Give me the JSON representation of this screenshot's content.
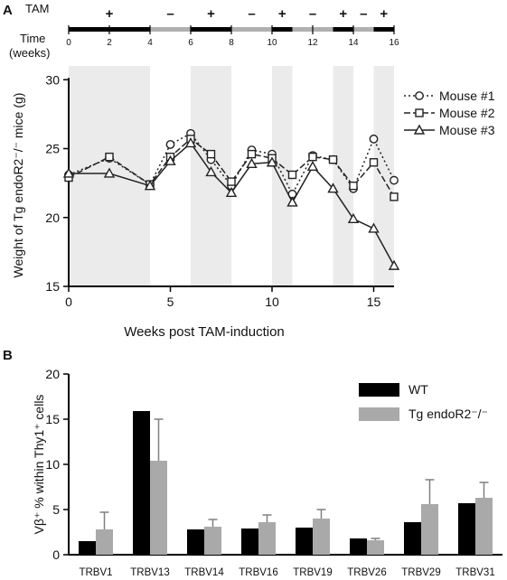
{
  "panel_a": {
    "letter": "A",
    "tam_label": "TAM",
    "time_label": [
      "Time",
      "(weeks)"
    ],
    "timeline_ticks": [
      0,
      2,
      4,
      6,
      8,
      10,
      12,
      14,
      16
    ],
    "tam_segments": [
      {
        "start": 0,
        "end": 4,
        "on": true
      },
      {
        "start": 4,
        "end": 6,
        "on": false
      },
      {
        "start": 6,
        "end": 8,
        "on": true
      },
      {
        "start": 8,
        "end": 10,
        "on": false
      },
      {
        "start": 10,
        "end": 11,
        "on": true
      },
      {
        "start": 11,
        "end": 13,
        "on": false
      },
      {
        "start": 13,
        "end": 14,
        "on": true
      },
      {
        "start": 14,
        "end": 15,
        "on": false
      },
      {
        "start": 15,
        "end": 16,
        "on": true
      }
    ],
    "tam_marks": [
      {
        "week": 2,
        "sign": "+"
      },
      {
        "week": 5,
        "sign": "–"
      },
      {
        "week": 7,
        "sign": "+"
      },
      {
        "week": 9,
        "sign": "–"
      },
      {
        "week": 10.5,
        "sign": "+"
      },
      {
        "week": 12,
        "sign": "–"
      },
      {
        "week": 13.5,
        "sign": "+"
      },
      {
        "week": 14.5,
        "sign": "–"
      },
      {
        "week": 15.5,
        "sign": "+"
      }
    ]
  },
  "panel_b": {
    "letter": "B"
  },
  "chart_data": [
    {
      "type": "line",
      "xlabel": "Weeks post TAM-induction",
      "ylabel": "Weight of Tg endoR2⁻/⁻ mice (g)",
      "xlim": [
        0,
        16
      ],
      "ylim": [
        15,
        31
      ],
      "xticks": [
        0,
        5,
        10,
        15
      ],
      "yticks": [
        15,
        20,
        25,
        30
      ],
      "legend_position": "top-right",
      "shaded_weeks": [
        [
          0,
          4
        ],
        [
          6,
          8
        ],
        [
          10,
          11
        ],
        [
          13,
          14
        ],
        [
          15,
          16
        ]
      ],
      "x": [
        0,
        2,
        4,
        5,
        6,
        7,
        8,
        9,
        10,
        11,
        12,
        13,
        14,
        15,
        16
      ],
      "series": [
        {
          "name": "Mouse #1",
          "marker": "circle",
          "dash": "2,3",
          "values": [
            23.1,
            24.3,
            22.4,
            25.3,
            26.1,
            24.2,
            22.3,
            24.9,
            24.6,
            21.7,
            24.5,
            24.2,
            22.1,
            25.7,
            22.7
          ]
        },
        {
          "name": "Mouse #2",
          "marker": "square",
          "dash": "7,3",
          "values": [
            22.9,
            24.4,
            22.4,
            24.4,
            25.7,
            24.6,
            22.6,
            24.6,
            24.3,
            23.1,
            24.4,
            24.2,
            22.3,
            24.0,
            21.5
          ]
        },
        {
          "name": "Mouse #3",
          "marker": "triangle",
          "dash": "",
          "values": [
            23.2,
            23.2,
            22.3,
            24.1,
            25.4,
            23.3,
            21.8,
            23.9,
            24.0,
            21.1,
            23.7,
            22.1,
            19.9,
            19.2,
            16.5
          ]
        }
      ]
    },
    {
      "type": "bar",
      "ylabel": "Vβ⁺ % within Thy1⁺ cells",
      "ylim": [
        0,
        20
      ],
      "yticks": [
        0,
        5,
        10,
        15,
        20
      ],
      "legend_position": "top-right",
      "categories": [
        "TRBV1",
        "TRBV13",
        "TRBV14",
        "TRBV16",
        "TRBV19",
        "TRBV26",
        "TRBV29",
        "TRBV31"
      ],
      "series": [
        {
          "name": "WT",
          "color": "#000000",
          "values": [
            1.5,
            15.9,
            2.8,
            2.9,
            3.0,
            1.8,
            3.6,
            5.7
          ],
          "errors": [
            0,
            0,
            0,
            0,
            0,
            0,
            0,
            0
          ]
        },
        {
          "name": "Tg endoR2⁻/⁻",
          "color": "#a9a9a9",
          "values": [
            2.8,
            10.4,
            3.1,
            3.6,
            4.0,
            1.6,
            5.6,
            6.3
          ],
          "errors": [
            1.9,
            4.6,
            0.8,
            0.8,
            1.0,
            0.2,
            2.7,
            1.7
          ]
        }
      ]
    }
  ]
}
